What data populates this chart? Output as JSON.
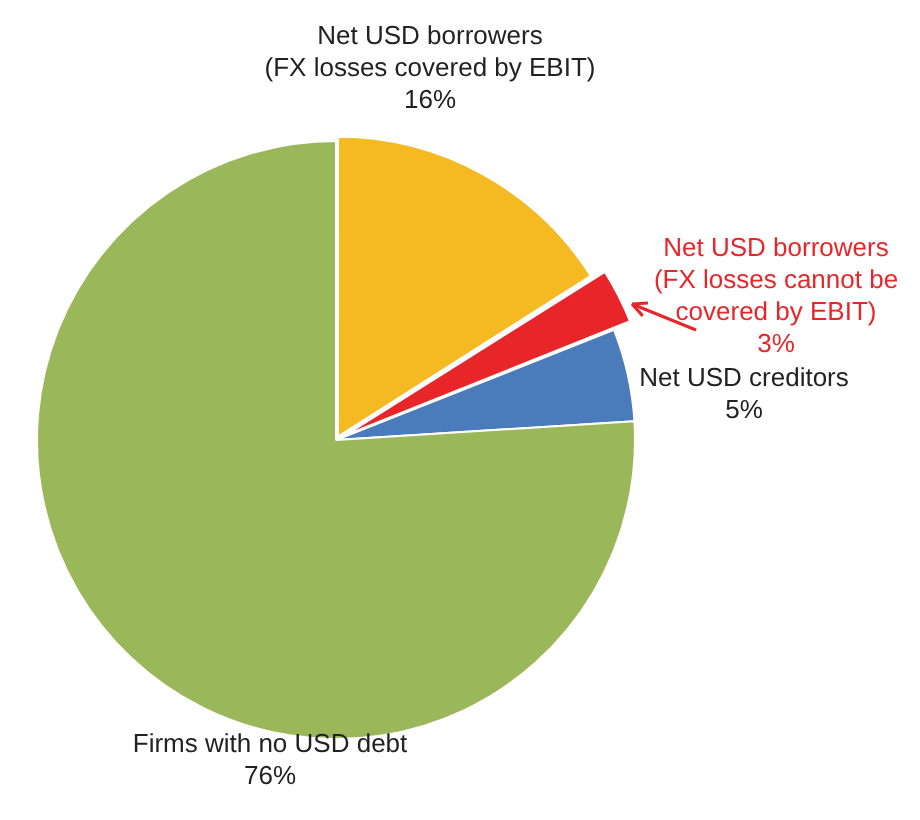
{
  "chart_data": {
    "type": "pie",
    "categories": [
      "Net USD borrowers (FX losses covered by EBIT)",
      "Net USD borrowers (FX losses cannot be covered by EBIT)",
      "Net USD creditors",
      "Firms with no USD debt"
    ],
    "values": [
      16,
      3,
      5,
      76
    ],
    "value_labels": [
      "16%",
      "3%",
      "5%",
      "76%"
    ],
    "colors": [
      "#f5b921",
      "#e8262a",
      "#4a7bbb",
      "#9ab85a"
    ],
    "legend": false
  }
}
